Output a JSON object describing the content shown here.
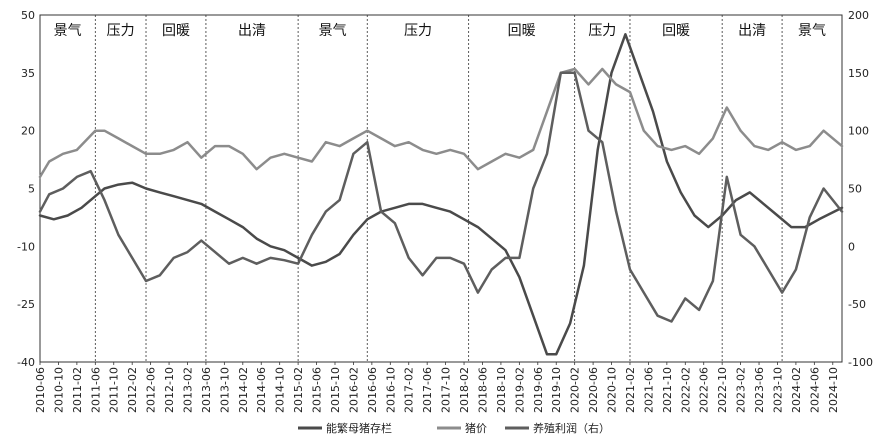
{
  "chart_data": {
    "type": "line",
    "title": "",
    "x_tick_labels": [
      "2010-06",
      "2010-10",
      "2011-02",
      "2011-06",
      "2011-10",
      "2012-02",
      "2012-06",
      "2012-10",
      "2013-02",
      "2013-06",
      "2013-10",
      "2014-02",
      "2014-06",
      "2014-10",
      "2015-02",
      "2015-06",
      "2015-10",
      "2016-02",
      "2016-06",
      "2016-10",
      "2017-02",
      "2017-06",
      "2017-10",
      "2018-02",
      "2018-06",
      "2018-10",
      "2019-02",
      "2019-06",
      "2019-10",
      "2020-02",
      "2020-06",
      "2020-10",
      "2021-02",
      "2021-06",
      "2021-10",
      "2022-02",
      "2022-06",
      "2022-10",
      "2023-02",
      "2023-06",
      "2023-10",
      "2024-02",
      "2024-06",
      "2024-10"
    ],
    "x_range": [
      "2010-06",
      "2024-12"
    ],
    "y_left": {
      "min": -40,
      "max": 50,
      "ticks": [
        50,
        35,
        20,
        5,
        -10,
        -25,
        -40
      ]
    },
    "y_right": {
      "min": -100,
      "max": 200,
      "ticks": [
        200,
        150,
        100,
        50,
        0,
        -50,
        -100
      ]
    },
    "phases": [
      {
        "label": "景气",
        "start": "2010-06",
        "end": "2011-06"
      },
      {
        "label": "压力",
        "start": "2011-06",
        "end": "2012-05"
      },
      {
        "label": "回暖",
        "start": "2012-05",
        "end": "2013-06"
      },
      {
        "label": "出清",
        "start": "2013-06",
        "end": "2015-02"
      },
      {
        "label": "景气",
        "start": "2015-02",
        "end": "2016-05"
      },
      {
        "label": "压力",
        "start": "2016-05",
        "end": "2018-03"
      },
      {
        "label": "回暖",
        "start": "2018-03",
        "end": "2020-02"
      },
      {
        "label": "压力",
        "start": "2020-02",
        "end": "2021-02"
      },
      {
        "label": "回暖",
        "start": "2021-02",
        "end": "2022-10"
      },
      {
        "label": "出清",
        "start": "2022-10",
        "end": "2023-11"
      },
      {
        "label": "景气",
        "start": "2023-11",
        "end": "2024-12"
      }
    ],
    "series": [
      {
        "name": "能繁母猪存栏",
        "axis": "left",
        "color": "#4a4a4a",
        "points": [
          [
            "2010-06",
            -2
          ],
          [
            "2010-09",
            -3
          ],
          [
            "2010-12",
            -2
          ],
          [
            "2011-03",
            0
          ],
          [
            "2011-06",
            3
          ],
          [
            "2011-08",
            5
          ],
          [
            "2011-11",
            6
          ],
          [
            "2012-02",
            6.5
          ],
          [
            "2012-05",
            5
          ],
          [
            "2012-08",
            4
          ],
          [
            "2012-11",
            3
          ],
          [
            "2013-02",
            2
          ],
          [
            "2013-05",
            1
          ],
          [
            "2013-08",
            -1
          ],
          [
            "2013-11",
            -3
          ],
          [
            "2014-02",
            -5
          ],
          [
            "2014-05",
            -8
          ],
          [
            "2014-08",
            -10
          ],
          [
            "2014-11",
            -11
          ],
          [
            "2015-02",
            -13
          ],
          [
            "2015-05",
            -15
          ],
          [
            "2015-08",
            -14
          ],
          [
            "2015-11",
            -12
          ],
          [
            "2016-02",
            -7
          ],
          [
            "2016-05",
            -3
          ],
          [
            "2016-08",
            -1
          ],
          [
            "2016-11",
            0
          ],
          [
            "2017-02",
            1
          ],
          [
            "2017-05",
            1
          ],
          [
            "2017-08",
            0
          ],
          [
            "2017-11",
            -1
          ],
          [
            "2018-02",
            -3
          ],
          [
            "2018-05",
            -5
          ],
          [
            "2018-08",
            -8
          ],
          [
            "2018-11",
            -11
          ],
          [
            "2019-02",
            -18
          ],
          [
            "2019-05",
            -28
          ],
          [
            "2019-08",
            -38
          ],
          [
            "2019-10",
            -38
          ],
          [
            "2020-01",
            -30
          ],
          [
            "2020-04",
            -15
          ],
          [
            "2020-07",
            15
          ],
          [
            "2020-10",
            35
          ],
          [
            "2021-01",
            45
          ],
          [
            "2021-04",
            35
          ],
          [
            "2021-07",
            25
          ],
          [
            "2021-10",
            12
          ],
          [
            "2022-01",
            4
          ],
          [
            "2022-04",
            -2
          ],
          [
            "2022-07",
            -5
          ],
          [
            "2022-10",
            -2
          ],
          [
            "2023-01",
            2
          ],
          [
            "2023-04",
            4
          ],
          [
            "2023-07",
            1
          ],
          [
            "2023-10",
            -2
          ],
          [
            "2024-01",
            -5
          ],
          [
            "2024-04",
            -5
          ],
          [
            "2024-07",
            -3
          ],
          [
            "2024-12",
            0
          ]
        ]
      },
      {
        "name": "猪价",
        "axis": "left",
        "color": "#8c8c8c",
        "points": [
          [
            "2010-06",
            8
          ],
          [
            "2010-08",
            12
          ],
          [
            "2010-11",
            14
          ],
          [
            "2011-02",
            15
          ],
          [
            "2011-06",
            20
          ],
          [
            "2011-08",
            20
          ],
          [
            "2011-11",
            18
          ],
          [
            "2012-02",
            16
          ],
          [
            "2012-05",
            14
          ],
          [
            "2012-08",
            14
          ],
          [
            "2012-11",
            15
          ],
          [
            "2013-02",
            17
          ],
          [
            "2013-05",
            13
          ],
          [
            "2013-08",
            16
          ],
          [
            "2013-11",
            16
          ],
          [
            "2014-02",
            14
          ],
          [
            "2014-05",
            10
          ],
          [
            "2014-08",
            13
          ],
          [
            "2014-11",
            14
          ],
          [
            "2015-02",
            13
          ],
          [
            "2015-05",
            12
          ],
          [
            "2015-08",
            17
          ],
          [
            "2015-11",
            16
          ],
          [
            "2016-02",
            18
          ],
          [
            "2016-05",
            20
          ],
          [
            "2016-08",
            18
          ],
          [
            "2016-11",
            16
          ],
          [
            "2017-02",
            17
          ],
          [
            "2017-05",
            15
          ],
          [
            "2017-08",
            14
          ],
          [
            "2017-11",
            15
          ],
          [
            "2018-02",
            14
          ],
          [
            "2018-05",
            10
          ],
          [
            "2018-08",
            12
          ],
          [
            "2018-11",
            14
          ],
          [
            "2019-02",
            13
          ],
          [
            "2019-05",
            15
          ],
          [
            "2019-08",
            25
          ],
          [
            "2019-11",
            35
          ],
          [
            "2020-02",
            36
          ],
          [
            "2020-05",
            32
          ],
          [
            "2020-08",
            36
          ],
          [
            "2020-11",
            32
          ],
          [
            "2021-02",
            30
          ],
          [
            "2021-05",
            20
          ],
          [
            "2021-08",
            16
          ],
          [
            "2021-11",
            15
          ],
          [
            "2022-02",
            16
          ],
          [
            "2022-05",
            14
          ],
          [
            "2022-08",
            18
          ],
          [
            "2022-11",
            26
          ],
          [
            "2023-02",
            20
          ],
          [
            "2023-05",
            16
          ],
          [
            "2023-08",
            15
          ],
          [
            "2023-11",
            17
          ],
          [
            "2024-02",
            15
          ],
          [
            "2024-05",
            16
          ],
          [
            "2024-08",
            20
          ],
          [
            "2024-12",
            16
          ]
        ]
      },
      {
        "name": "养殖利润（右）",
        "axis": "right",
        "color": "#5e5e5e",
        "points": [
          [
            "2010-06",
            30
          ],
          [
            "2010-08",
            45
          ],
          [
            "2010-11",
            50
          ],
          [
            "2011-02",
            60
          ],
          [
            "2011-05",
            65
          ],
          [
            "2011-08",
            40
          ],
          [
            "2011-11",
            10
          ],
          [
            "2012-02",
            -10
          ],
          [
            "2012-05",
            -30
          ],
          [
            "2012-08",
            -25
          ],
          [
            "2012-11",
            -10
          ],
          [
            "2013-02",
            -5
          ],
          [
            "2013-05",
            5
          ],
          [
            "2013-08",
            -5
          ],
          [
            "2013-11",
            -15
          ],
          [
            "2014-02",
            -10
          ],
          [
            "2014-05",
            -15
          ],
          [
            "2014-08",
            -10
          ],
          [
            "2014-11",
            -12
          ],
          [
            "2015-02",
            -15
          ],
          [
            "2015-05",
            10
          ],
          [
            "2015-08",
            30
          ],
          [
            "2015-11",
            40
          ],
          [
            "2016-02",
            80
          ],
          [
            "2016-05",
            90
          ],
          [
            "2016-08",
            30
          ],
          [
            "2016-11",
            20
          ],
          [
            "2017-02",
            -10
          ],
          [
            "2017-05",
            -25
          ],
          [
            "2017-08",
            -10
          ],
          [
            "2017-11",
            -10
          ],
          [
            "2018-02",
            -15
          ],
          [
            "2018-05",
            -40
          ],
          [
            "2018-08",
            -20
          ],
          [
            "2018-11",
            -10
          ],
          [
            "2019-02",
            -10
          ],
          [
            "2019-05",
            50
          ],
          [
            "2019-08",
            80
          ],
          [
            "2019-11",
            150
          ],
          [
            "2020-02",
            150
          ],
          [
            "2020-05",
            100
          ],
          [
            "2020-08",
            90
          ],
          [
            "2020-11",
            30
          ],
          [
            "2021-02",
            -20
          ],
          [
            "2021-05",
            -40
          ],
          [
            "2021-08",
            -60
          ],
          [
            "2021-11",
            -65
          ],
          [
            "2022-02",
            -45
          ],
          [
            "2022-05",
            -55
          ],
          [
            "2022-08",
            -30
          ],
          [
            "2022-11",
            60
          ],
          [
            "2023-02",
            10
          ],
          [
            "2023-05",
            0
          ],
          [
            "2023-08",
            -20
          ],
          [
            "2023-11",
            -40
          ],
          [
            "2024-02",
            -20
          ],
          [
            "2024-05",
            25
          ],
          [
            "2024-08",
            50
          ],
          [
            "2024-12",
            30
          ]
        ]
      }
    ],
    "legend_position": "bottom"
  }
}
